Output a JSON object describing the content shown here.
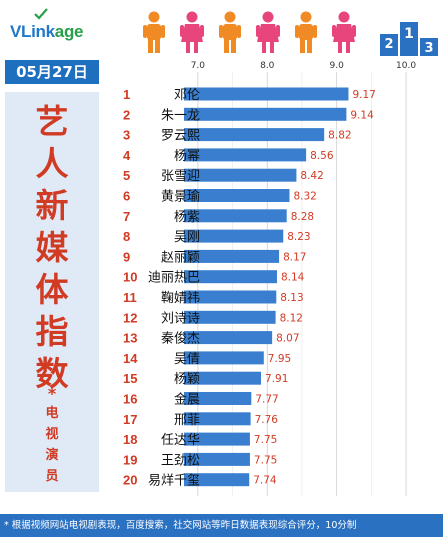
{
  "header": {
    "logo_main": "VLink",
    "logo_suffix": "age"
  },
  "date": "05月27日",
  "side_title": {
    "chars": [
      "艺",
      "人",
      "新",
      "媒",
      "体",
      "指",
      "数"
    ],
    "star": "*",
    "sub_chars": [
      "电",
      "视",
      "演",
      "员"
    ]
  },
  "footer": {
    "note": "* 根据视频网站电视剧表现，百度搜索，社交网站等昨日数据表现综合评分，10分制"
  },
  "colors": {
    "bar": "#3a7fcf",
    "rank": "#d13a23",
    "value": "#d13a23",
    "footer": "#2a71c2"
  },
  "chart_data": {
    "type": "bar",
    "orientation": "horizontal",
    "x_ticks": [
      "7.0",
      "8.0",
      "9.0",
      "10.0"
    ],
    "xlim": [
      6.8,
      10.1
    ],
    "ranks": [
      "1",
      "2",
      "3",
      "4",
      "5",
      "6",
      "7",
      "8",
      "9",
      "10",
      "11",
      "12",
      "13",
      "14",
      "15",
      "16",
      "17",
      "18",
      "19",
      "20"
    ],
    "categories": [
      "邓伦",
      "朱一龙",
      "罗云熙",
      "杨幂",
      "张雪迎",
      "黄景瑜",
      "杨紫",
      "吴刚",
      "赵丽颖",
      "迪丽热巴",
      "鞠婧祎",
      "刘诗诗",
      "秦俊杰",
      "吴倩",
      "杨颖",
      "金晨",
      "邢菲",
      "任达华",
      "王劲松",
      "易烊千玺"
    ],
    "values": [
      9.17,
      9.14,
      8.82,
      8.56,
      8.42,
      8.32,
      8.28,
      8.23,
      8.17,
      8.14,
      8.13,
      8.12,
      8.07,
      7.95,
      7.91,
      7.77,
      7.76,
      7.75,
      7.75,
      7.74
    ],
    "value_labels": [
      "9.17",
      "9.14",
      "8.82",
      "8.56",
      "8.42",
      "8.32",
      "8.28",
      "8.23",
      "8.17",
      "8.14",
      "8.13",
      "8.12",
      "8.07",
      "7.95",
      "7.91",
      "7.77",
      "7.76",
      "7.75",
      "7.75",
      "7.74"
    ]
  }
}
